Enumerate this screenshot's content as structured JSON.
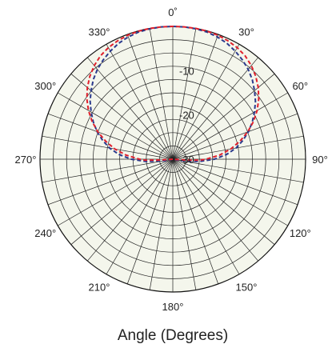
{
  "chart_data": {
    "type": "line",
    "subtype": "polar",
    "xlabel": "Angle (Degrees)",
    "background_color": "#f4f6ec",
    "grid": true,
    "angle_ticks": [
      {
        "angle": 0,
        "label": "0˚"
      },
      {
        "angle": 30,
        "label": "30°"
      },
      {
        "angle": 60,
        "label": "60°"
      },
      {
        "angle": 90,
        "label": "90°"
      },
      {
        "angle": 120,
        "label": "120°"
      },
      {
        "angle": 150,
        "label": "150°"
      },
      {
        "angle": 180,
        "label": "180°"
      },
      {
        "angle": 210,
        "label": "210°"
      },
      {
        "angle": 240,
        "label": "240°"
      },
      {
        "angle": 270,
        "label": "270°"
      },
      {
        "angle": 300,
        "label": "300°"
      },
      {
        "angle": 330,
        "label": "330°"
      }
    ],
    "radial_axis": {
      "min": -30,
      "max": 0,
      "ticks": [
        {
          "value": -10,
          "label": "-10"
        },
        {
          "value": -20,
          "label": "-20"
        },
        {
          "value": -30,
          "label": "-30"
        }
      ]
    },
    "series": [
      {
        "color": "#2b3a8c",
        "style": "dashed",
        "angles": [
          -102,
          -100,
          -95,
          -90,
          -85,
          -80,
          -75,
          -70,
          -65,
          -60,
          -55,
          -50,
          -45,
          -40,
          -35,
          -30,
          -25,
          -20,
          -15,
          -10,
          -5,
          0,
          5,
          10,
          15,
          20,
          25,
          30,
          35,
          40,
          45,
          50,
          55,
          60,
          65,
          70,
          75,
          80,
          85,
          90,
          95,
          100,
          102
        ],
        "values": [
          -30,
          -28,
          -24,
          -20.6,
          -17.8,
          -15.5,
          -13.6,
          -11.8,
          -10.2,
          -8.7,
          -7.2,
          -5.9,
          -4.6,
          -3.5,
          -2.6,
          -1.8,
          -1.1,
          -0.6,
          -0.25,
          -0.1,
          0,
          0,
          0,
          -0.1,
          -0.25,
          -0.6,
          -1.1,
          -1.8,
          -2.6,
          -3.5,
          -4.6,
          -5.9,
          -7.2,
          -8.7,
          -10.2,
          -11.8,
          -13.6,
          -15.5,
          -17.8,
          -20.6,
          -24,
          -28,
          -30
        ]
      },
      {
        "color": "#e0202c",
        "style": "dashed",
        "angles": [
          -95,
          -94,
          -92,
          -90,
          -85,
          -80,
          -75,
          -70,
          -65,
          -60,
          -55,
          -50,
          -45,
          -40,
          -35,
          -30,
          -25,
          -20,
          -15,
          -10,
          -5,
          0,
          5,
          10,
          15,
          20,
          25,
          30,
          35,
          40,
          45,
          50,
          55,
          60,
          65,
          70,
          75,
          80,
          85,
          90,
          92,
          94,
          95
        ],
        "values": [
          -30,
          -27.3,
          -23.8,
          -22.5,
          -19.4,
          -16.7,
          -14.3,
          -12.0,
          -9.9,
          -8.0,
          -6.3,
          -4.8,
          -3.5,
          -2.4,
          -1.5,
          -0.9,
          -0.5,
          -0.2,
          -0.05,
          0,
          0,
          0,
          0,
          0,
          -0.05,
          -0.2,
          -0.5,
          -0.9,
          -1.5,
          -2.4,
          -3.5,
          -4.8,
          -6.3,
          -8.0,
          -9.9,
          -12.0,
          -14.3,
          -16.7,
          -19.4,
          -22.5,
          -23.8,
          -27.3,
          -30
        ]
      }
    ]
  }
}
